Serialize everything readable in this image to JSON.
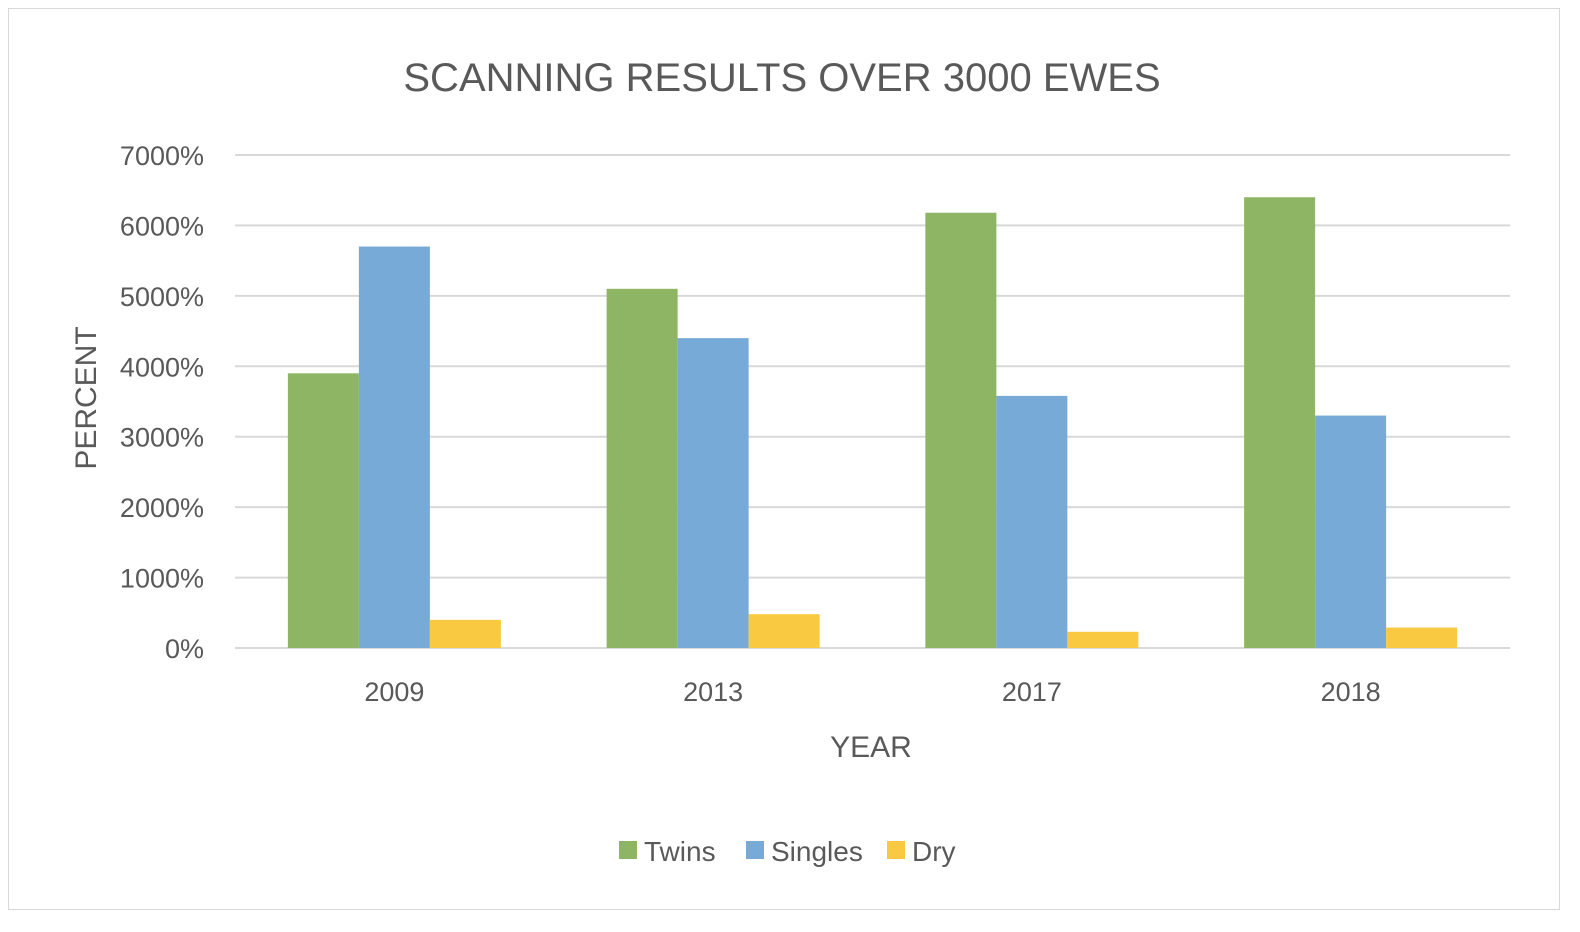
{
  "chart_data": {
    "type": "bar",
    "title": "SCANNING RESULTS OVER 3000 EWES",
    "xlabel": "YEAR",
    "ylabel": "PERCENT",
    "categories": [
      "2009",
      "2013",
      "2017",
      "2018"
    ],
    "series": [
      {
        "name": "Twins",
        "color": "#8db563",
        "values": [
          3900,
          5100,
          6180,
          6400
        ]
      },
      {
        "name": "Singles",
        "color": "#77aad7",
        "values": [
          5700,
          4400,
          3580,
          3300
        ]
      },
      {
        "name": "Dry",
        "color": "#f8c941",
        "values": [
          400,
          480,
          230,
          290
        ]
      }
    ],
    "ylim": [
      0,
      7000
    ],
    "yticks": [
      0,
      1000,
      2000,
      3000,
      4000,
      5000,
      6000,
      7000
    ],
    "ytick_labels": [
      "0%",
      "1000%",
      "2000%",
      "3000%",
      "4000%",
      "5000%",
      "6000%",
      "7000%"
    ],
    "grid": true,
    "legend_position": "bottom"
  }
}
